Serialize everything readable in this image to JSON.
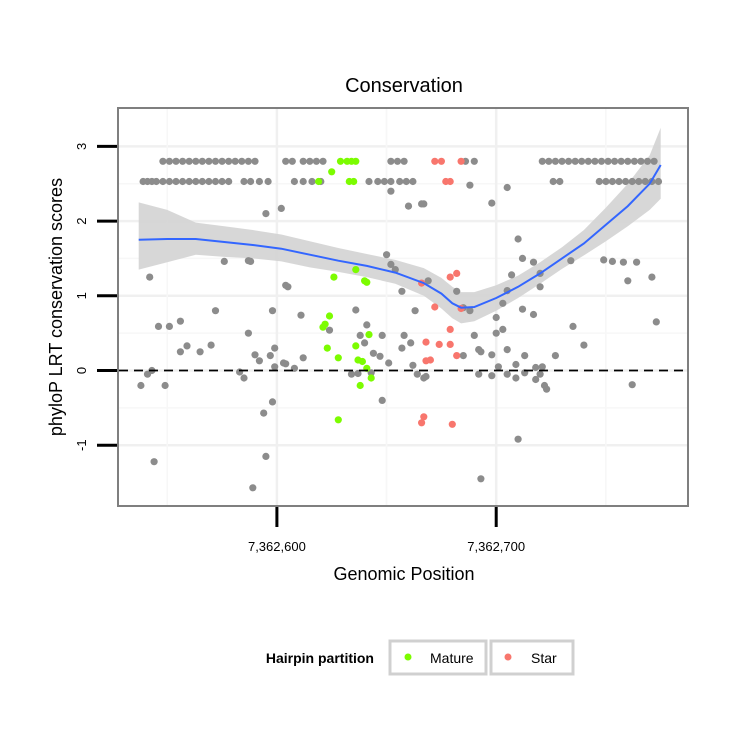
{
  "chart_data": {
    "type": "scatter",
    "title": "Conservation",
    "xlabel": "Genomic Position",
    "ylabel": "phyloP LRT conservation scores",
    "xlim": [
      7362528,
      7362787
    ],
    "ylim": [
      -1.8,
      3.5
    ],
    "x_ticks": [
      7362600,
      7362700
    ],
    "x_tick_labels": [
      "7,362,600",
      "7,362,700"
    ],
    "y_ticks": [
      -1,
      0,
      1,
      2,
      3
    ],
    "y_tick_labels": [
      "-1",
      "0",
      "1",
      "2",
      "3"
    ],
    "reference_line": {
      "y": 0,
      "style": "dashed"
    },
    "grid": true,
    "legend": {
      "title": "Hairpin partition",
      "position": "bottom",
      "entries": [
        {
          "label": "Mature",
          "color": "#7cfc00"
        },
        {
          "label": "Star",
          "color": "#f8766d"
        }
      ]
    },
    "colors": {
      "other": "#8c8c8c",
      "Mature": "#7cfc00",
      "Star": "#f8766d",
      "smooth": "#3366ff",
      "band": "#d3d3d3"
    },
    "series": [
      {
        "name": "other",
        "points": [
          [
            7362539,
            2.53
          ],
          [
            7362541,
            2.53
          ],
          [
            7362543,
            2.53
          ],
          [
            7362545,
            2.53
          ],
          [
            7362548,
            2.53
          ],
          [
            7362551,
            2.53
          ],
          [
            7362554,
            2.53
          ],
          [
            7362557,
            2.53
          ],
          [
            7362560,
            2.53
          ],
          [
            7362563,
            2.53
          ],
          [
            7362566,
            2.53
          ],
          [
            7362569,
            2.53
          ],
          [
            7362572,
            2.53
          ],
          [
            7362575,
            2.53
          ],
          [
            7362578,
            2.53
          ],
          [
            7362548,
            2.8
          ],
          [
            7362551,
            2.8
          ],
          [
            7362554,
            2.8
          ],
          [
            7362557,
            2.8
          ],
          [
            7362560,
            2.8
          ],
          [
            7362563,
            2.8
          ],
          [
            7362566,
            2.8
          ],
          [
            7362569,
            2.8
          ],
          [
            7362572,
            2.8
          ],
          [
            7362575,
            2.8
          ],
          [
            7362578,
            2.8
          ],
          [
            7362581,
            2.8
          ],
          [
            7362584,
            2.8
          ],
          [
            7362587,
            2.8
          ],
          [
            7362590,
            2.8
          ],
          [
            7362585,
            2.53
          ],
          [
            7362588,
            2.53
          ],
          [
            7362592,
            2.53
          ],
          [
            7362596,
            2.53
          ],
          [
            7362604,
            2.8
          ],
          [
            7362607,
            2.8
          ],
          [
            7362612,
            2.8
          ],
          [
            7362615,
            2.8
          ],
          [
            7362618,
            2.8
          ],
          [
            7362621,
            2.8
          ],
          [
            7362608,
            2.53
          ],
          [
            7362612,
            2.53
          ],
          [
            7362616,
            2.53
          ],
          [
            7362620,
            2.53
          ],
          [
            7362642,
            2.53
          ],
          [
            7362646,
            2.53
          ],
          [
            7362649,
            2.53
          ],
          [
            7362652,
            2.53
          ],
          [
            7362656,
            2.53
          ],
          [
            7362659,
            2.53
          ],
          [
            7362662,
            2.53
          ],
          [
            7362652,
            2.8
          ],
          [
            7362655,
            2.8
          ],
          [
            7362658,
            2.8
          ],
          [
            7362686,
            2.8
          ],
          [
            7362690,
            2.8
          ],
          [
            7362721,
            2.8
          ],
          [
            7362724,
            2.8
          ],
          [
            7362727,
            2.8
          ],
          [
            7362730,
            2.8
          ],
          [
            7362733,
            2.8
          ],
          [
            7362736,
            2.8
          ],
          [
            7362739,
            2.8
          ],
          [
            7362742,
            2.8
          ],
          [
            7362745,
            2.8
          ],
          [
            7362748,
            2.8
          ],
          [
            7362751,
            2.8
          ],
          [
            7362754,
            2.8
          ],
          [
            7362757,
            2.8
          ],
          [
            7362760,
            2.8
          ],
          [
            7362763,
            2.8
          ],
          [
            7362766,
            2.8
          ],
          [
            7362769,
            2.8
          ],
          [
            7362772,
            2.8
          ],
          [
            7362726,
            2.53
          ],
          [
            7362729,
            2.53
          ],
          [
            7362747,
            2.53
          ],
          [
            7362750,
            2.53
          ],
          [
            7362753,
            2.53
          ],
          [
            7362756,
            2.53
          ],
          [
            7362759,
            2.53
          ],
          [
            7362762,
            2.53
          ],
          [
            7362765,
            2.53
          ],
          [
            7362768,
            2.53
          ],
          [
            7362771,
            2.53
          ],
          [
            7362774,
            2.53
          ],
          [
            7362652,
            2.4
          ],
          [
            7362660,
            2.2
          ],
          [
            7362666,
            2.23
          ],
          [
            7362667,
            2.23
          ],
          [
            7362688,
            2.48
          ],
          [
            7362705,
            2.45
          ],
          [
            7362698,
            2.24
          ],
          [
            7362595,
            2.1
          ],
          [
            7362602,
            2.17
          ],
          [
            7362710,
            1.76
          ],
          [
            7362712,
            1.5
          ],
          [
            7362720,
            1.12
          ],
          [
            7362717,
            1.45
          ],
          [
            7362734,
            1.47
          ],
          [
            7362749,
            1.48
          ],
          [
            7362753,
            1.46
          ],
          [
            7362764,
            1.45
          ],
          [
            7362771,
            1.25
          ],
          [
            7362576,
            1.46
          ],
          [
            7362587,
            1.47
          ],
          [
            7362588,
            1.46
          ],
          [
            7362604,
            1.14
          ],
          [
            7362605,
            1.12
          ],
          [
            7362542,
            1.25
          ],
          [
            7362556,
            0.66
          ],
          [
            7362572,
            0.8
          ],
          [
            7362598,
            0.8
          ],
          [
            7362611,
            0.74
          ],
          [
            7362624,
            0.54
          ],
          [
            7362636,
            0.81
          ],
          [
            7362641,
            0.61
          ],
          [
            7362648,
            0.47
          ],
          [
            7362650,
            1.55
          ],
          [
            7362652,
            1.42
          ],
          [
            7362654,
            1.35
          ],
          [
            7362657,
            1.06
          ],
          [
            7362663,
            0.8
          ],
          [
            7362658,
            0.47
          ],
          [
            7362661,
            0.37
          ],
          [
            7362669,
            1.2
          ],
          [
            7362682,
            1.06
          ],
          [
            7362685,
            0.84
          ],
          [
            7362688,
            0.8
          ],
          [
            7362700,
            0.71
          ],
          [
            7362703,
            0.9
          ],
          [
            7362705,
            1.07
          ],
          [
            7362707,
            1.28
          ],
          [
            7362712,
            0.82
          ],
          [
            7362717,
            0.75
          ],
          [
            7362720,
            1.3
          ],
          [
            7362735,
            0.59
          ],
          [
            7362758,
            1.45
          ],
          [
            7362773,
            0.65
          ],
          [
            7362760,
            1.2
          ],
          [
            7362546,
            0.59
          ],
          [
            7362551,
            0.59
          ],
          [
            7362556,
            0.25
          ],
          [
            7362559,
            0.33
          ],
          [
            7362565,
            0.25
          ],
          [
            7362570,
            0.34
          ],
          [
            7362587,
            0.5
          ],
          [
            7362590,
            0.21
          ],
          [
            7362592,
            0.13
          ],
          [
            7362597,
            0.2
          ],
          [
            7362599,
            0.3
          ],
          [
            7362604,
            0.09
          ],
          [
            7362608,
            0.03
          ],
          [
            7362612,
            0.17
          ],
          [
            7362638,
            0.47
          ],
          [
            7362640,
            0.37
          ],
          [
            7362644,
            0.23
          ],
          [
            7362647,
            0.19
          ],
          [
            7362651,
            0.1
          ],
          [
            7362657,
            0.3
          ],
          [
            7362662,
            0.07
          ],
          [
            7362667,
            -0.1
          ],
          [
            7362685,
            0.2
          ],
          [
            7362690,
            0.47
          ],
          [
            7362692,
            0.28
          ],
          [
            7362693,
            0.25
          ],
          [
            7362698,
            0.21
          ],
          [
            7362700,
            0.5
          ],
          [
            7362703,
            0.55
          ],
          [
            7362705,
            0.28
          ],
          [
            7362709,
            0.08
          ],
          [
            7362713,
            0.2
          ],
          [
            7362718,
            0.04
          ],
          [
            7362721,
            0.05
          ],
          [
            7362727,
            0.2
          ],
          [
            7362538,
            -0.2
          ],
          [
            7362541,
            -0.05
          ],
          [
            7362543,
            0
          ],
          [
            7362549,
            -0.2
          ],
          [
            7362583,
            -0.02
          ],
          [
            7362585,
            -0.1
          ],
          [
            7362599,
            0.05
          ],
          [
            7362603,
            0.1
          ],
          [
            7362634,
            -0.05
          ],
          [
            7362637,
            -0.04
          ],
          [
            7362643,
            -0.03
          ],
          [
            7362648,
            -0.4
          ],
          [
            7362664,
            -0.05
          ],
          [
            7362668,
            -0.08
          ],
          [
            7362692,
            -0.05
          ],
          [
            7362698,
            -0.07
          ],
          [
            7362701,
            0.05
          ],
          [
            7362705,
            -0.05
          ],
          [
            7362709,
            -0.1
          ],
          [
            7362713,
            -0.03
          ],
          [
            7362718,
            -0.12
          ],
          [
            7362720,
            -0.05
          ],
          [
            7362722,
            -0.2
          ],
          [
            7362723,
            -0.25
          ],
          [
            7362594,
            -0.57
          ],
          [
            7362598,
            -0.42
          ],
          [
            7362595,
            -1.15
          ],
          [
            7362589,
            -1.57
          ],
          [
            7362544,
            -1.22
          ],
          [
            7362693,
            -1.45
          ],
          [
            7362710,
            -0.92
          ],
          [
            7362740,
            0.34
          ],
          [
            7362762,
            -0.19
          ]
        ]
      },
      {
        "name": "Mature",
        "points": [
          [
            7362619,
            2.53
          ],
          [
            7362625,
            2.66
          ],
          [
            7362629,
            2.8
          ],
          [
            7362632,
            2.8
          ],
          [
            7362634,
            2.8
          ],
          [
            7362636,
            2.8
          ],
          [
            7362633,
            2.53
          ],
          [
            7362635,
            2.53
          ],
          [
            7362626,
            1.25
          ],
          [
            7362636,
            1.35
          ],
          [
            7362640,
            1.2
          ],
          [
            7362641,
            1.18
          ],
          [
            7362621,
            0.58
          ],
          [
            7362622,
            0.62
          ],
          [
            7362624,
            0.73
          ],
          [
            7362623,
            0.3
          ],
          [
            7362628,
            0.17
          ],
          [
            7362636,
            0.33
          ],
          [
            7362637,
            0.14
          ],
          [
            7362639,
            0.12
          ],
          [
            7362642,
            0.48
          ],
          [
            7362641,
            0.03
          ],
          [
            7362643,
            -0.1
          ],
          [
            7362638,
            -0.2
          ],
          [
            7362628,
            -0.66
          ]
        ]
      },
      {
        "name": "Star",
        "points": [
          [
            7362672,
            2.8
          ],
          [
            7362675,
            2.8
          ],
          [
            7362679,
            2.53
          ],
          [
            7362677,
            2.53
          ],
          [
            7362684,
            2.8
          ],
          [
            7362679,
            1.25
          ],
          [
            7362682,
            1.3
          ],
          [
            7362666,
            1.17
          ],
          [
            7362672,
            0.85
          ],
          [
            7362684,
            0.83
          ],
          [
            7362679,
            0.55
          ],
          [
            7362668,
            0.38
          ],
          [
            7362674,
            0.35
          ],
          [
            7362679,
            0.35
          ],
          [
            7362682,
            0.2
          ],
          [
            7362668,
            0.13
          ],
          [
            7362670,
            0.14
          ],
          [
            7362667,
            -0.62
          ],
          [
            7362666,
            -0.7
          ],
          [
            7362680,
            -0.72
          ]
        ]
      }
    ],
    "smooth": {
      "method": "loess",
      "x": [
        7362537,
        7362550,
        7362563,
        7362576,
        7362589,
        7362602,
        7362615,
        7362628,
        7362641,
        7362654,
        7362667,
        7362675,
        7362680,
        7362684,
        7362690,
        7362700,
        7362710,
        7362720,
        7362730,
        7362740,
        7362750,
        7362760,
        7362770,
        7362775
      ],
      "y": [
        1.75,
        1.76,
        1.76,
        1.72,
        1.68,
        1.63,
        1.55,
        1.47,
        1.4,
        1.31,
        1.17,
        1.03,
        0.9,
        0.84,
        0.85,
        0.97,
        1.12,
        1.3,
        1.5,
        1.7,
        1.95,
        2.2,
        2.5,
        2.75
      ],
      "lower": [
        1.35,
        1.45,
        1.55,
        1.52,
        1.5,
        1.46,
        1.38,
        1.32,
        1.25,
        1.16,
        1.0,
        0.83,
        0.7,
        0.63,
        0.66,
        0.8,
        0.97,
        1.16,
        1.36,
        1.54,
        1.73,
        1.93,
        2.15,
        2.3
      ],
      "upper": [
        2.25,
        2.15,
        1.98,
        1.93,
        1.88,
        1.82,
        1.73,
        1.64,
        1.56,
        1.48,
        1.37,
        1.24,
        1.12,
        1.05,
        1.05,
        1.14,
        1.27,
        1.45,
        1.65,
        1.88,
        2.18,
        2.5,
        2.88,
        3.25
      ]
    }
  }
}
